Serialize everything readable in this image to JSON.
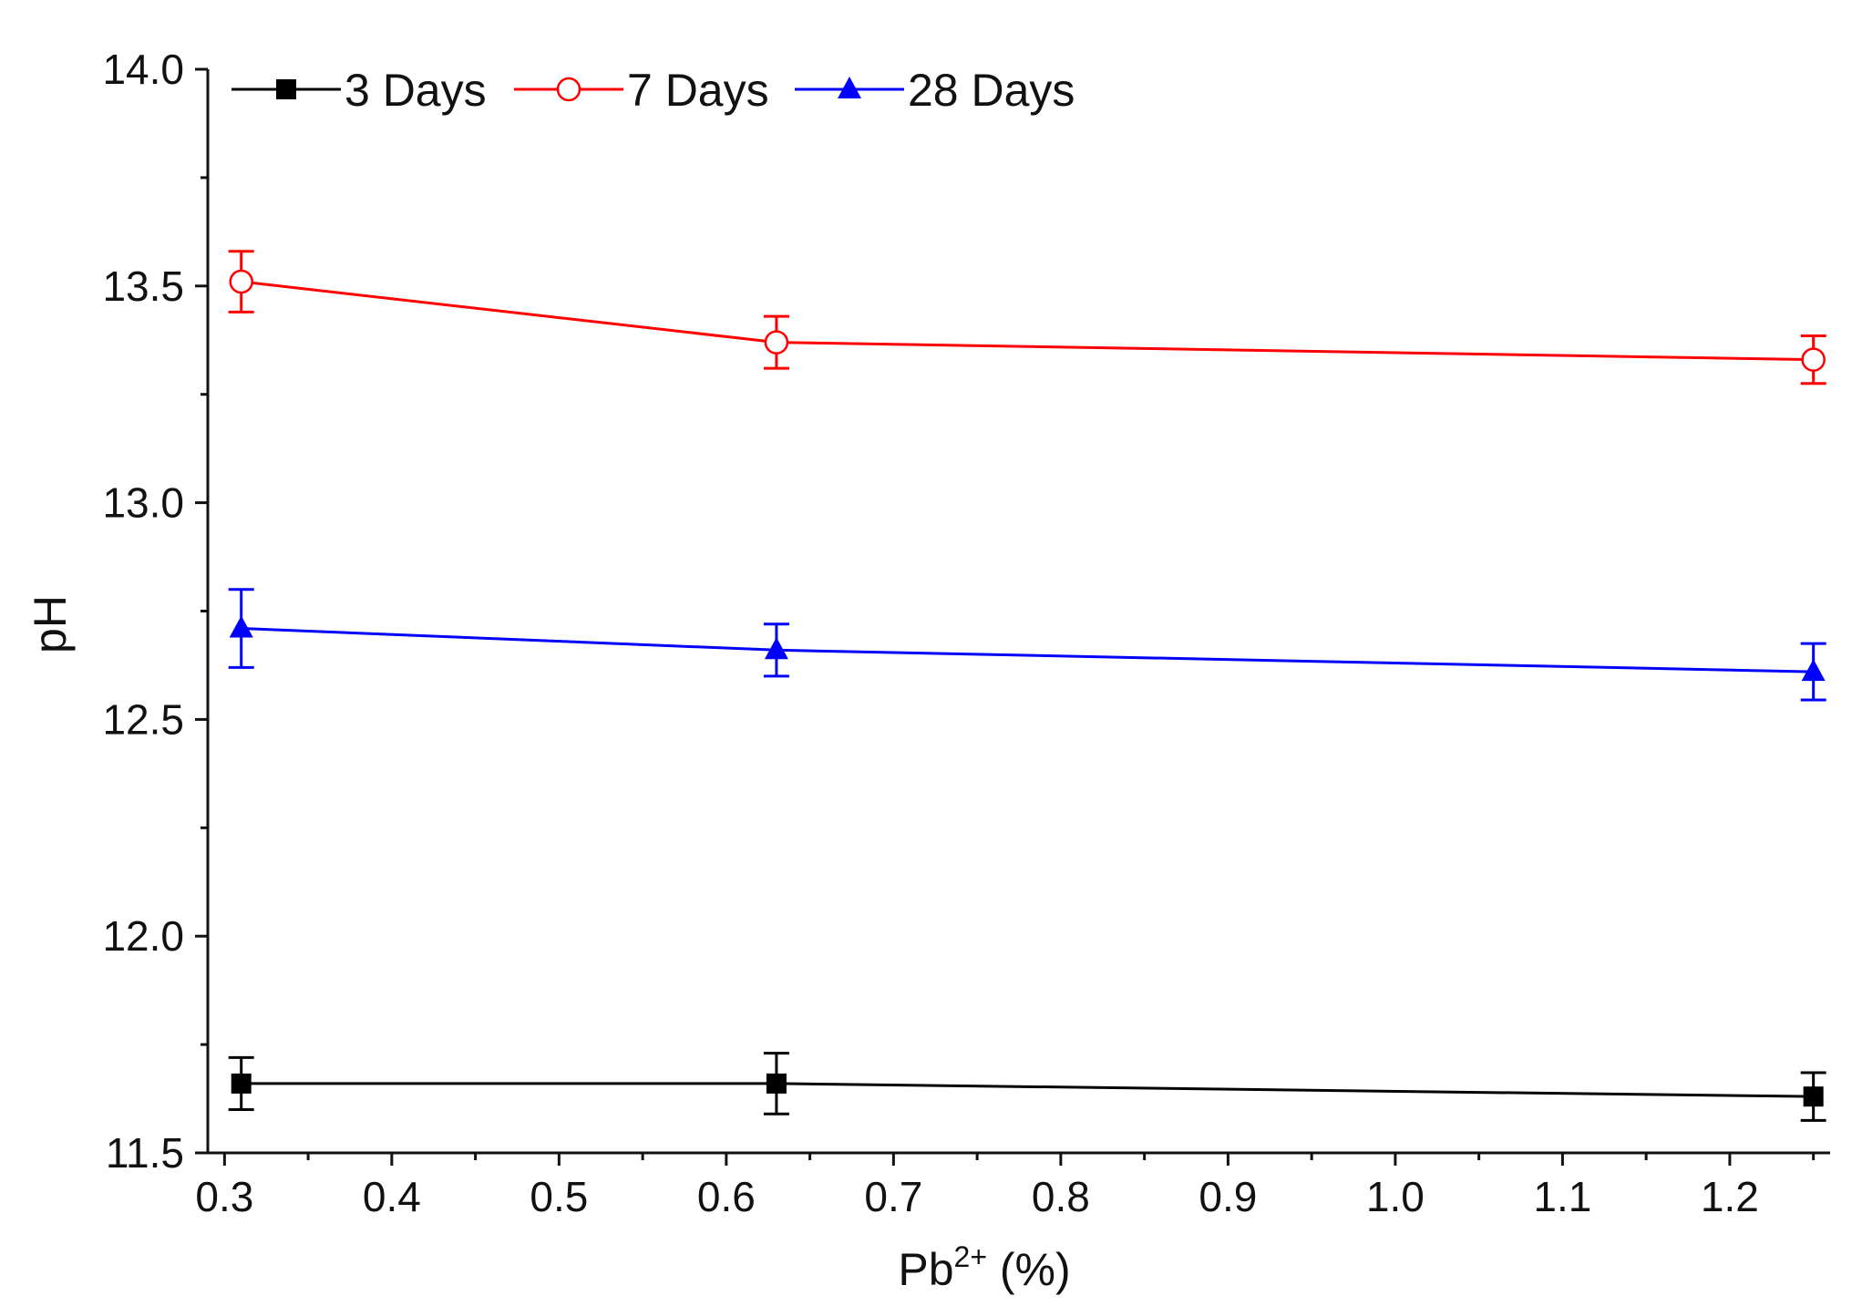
{
  "chart_data": {
    "type": "line",
    "title": "",
    "xlabel_base": "Pb",
    "xlabel_sup": "2+",
    "xlabel_tail": " (%)",
    "ylabel": "pH",
    "xlim": [
      0.29,
      1.26
    ],
    "ylim": [
      11.5,
      14.0
    ],
    "x_ticks": [
      0.3,
      0.4,
      0.5,
      0.6,
      0.7,
      0.8,
      0.9,
      1.0,
      1.1,
      1.2
    ],
    "x_tick_labels": [
      "0.3",
      "0.4",
      "0.5",
      "0.6",
      "0.7",
      "0.8",
      "0.9",
      "1.0",
      "1.1",
      "1.2"
    ],
    "x_minor_ticks": [
      0.35,
      0.45,
      0.55,
      0.65,
      0.75,
      0.85,
      0.95,
      1.05,
      1.15,
      1.25
    ],
    "y_ticks": [
      11.5,
      12.0,
      12.5,
      13.0,
      13.5,
      14.0
    ],
    "y_tick_labels": [
      "11.5",
      "12.0",
      "12.5",
      "13.0",
      "13.5",
      "14.0"
    ],
    "y_minor_ticks": [
      11.75,
      12.25,
      12.75,
      13.25,
      13.75
    ],
    "grid": false,
    "legend_position": "top-left",
    "x": [
      0.31,
      0.63,
      1.25
    ],
    "series": [
      {
        "name": "3 Days",
        "color": "#000000",
        "marker": "square-filled",
        "values": [
          11.66,
          11.66,
          11.63
        ],
        "errors": [
          0.06,
          0.07,
          0.055
        ]
      },
      {
        "name": "7 Days",
        "color": "#ff0000",
        "marker": "circle-open",
        "values": [
          13.51,
          13.37,
          13.33
        ],
        "errors": [
          0.07,
          0.06,
          0.055
        ]
      },
      {
        "name": "28 Days",
        "color": "#0000ff",
        "marker": "triangle-filled",
        "values": [
          12.71,
          12.66,
          12.61
        ],
        "errors": [
          0.09,
          0.06,
          0.065
        ]
      }
    ]
  }
}
